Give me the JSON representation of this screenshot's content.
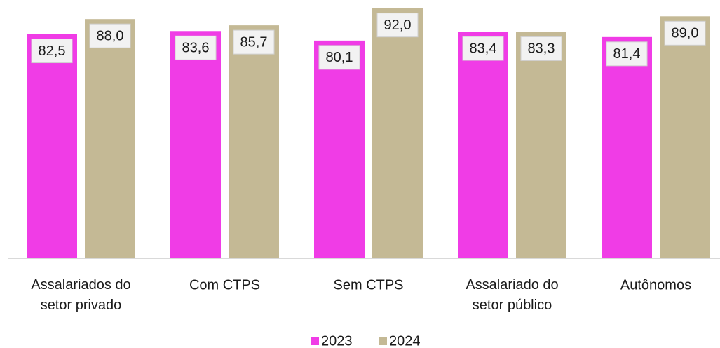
{
  "chart_data": {
    "type": "bar",
    "categories": [
      "Assalariados do\nsetor privado",
      "Com CTPS",
      "Sem CTPS",
      "Assalariado do\nsetor público",
      "Autônomos"
    ],
    "series": [
      {
        "name": "2023",
        "color": "#f03ce6",
        "values": [
          82.5,
          83.6,
          80.1,
          83.4,
          81.4
        ],
        "value_labels": [
          "82,5",
          "83,6",
          "80,1",
          "83,4",
          "81,4"
        ]
      },
      {
        "name": "2024",
        "color": "#c4b995",
        "values": [
          88.0,
          85.7,
          92.0,
          83.3,
          89.0
        ],
        "value_labels": [
          "88,0",
          "85,7",
          "92,0",
          "83,3",
          "89,0"
        ]
      }
    ],
    "ylim": [
      0,
      95
    ],
    "legend": "bottom"
  }
}
